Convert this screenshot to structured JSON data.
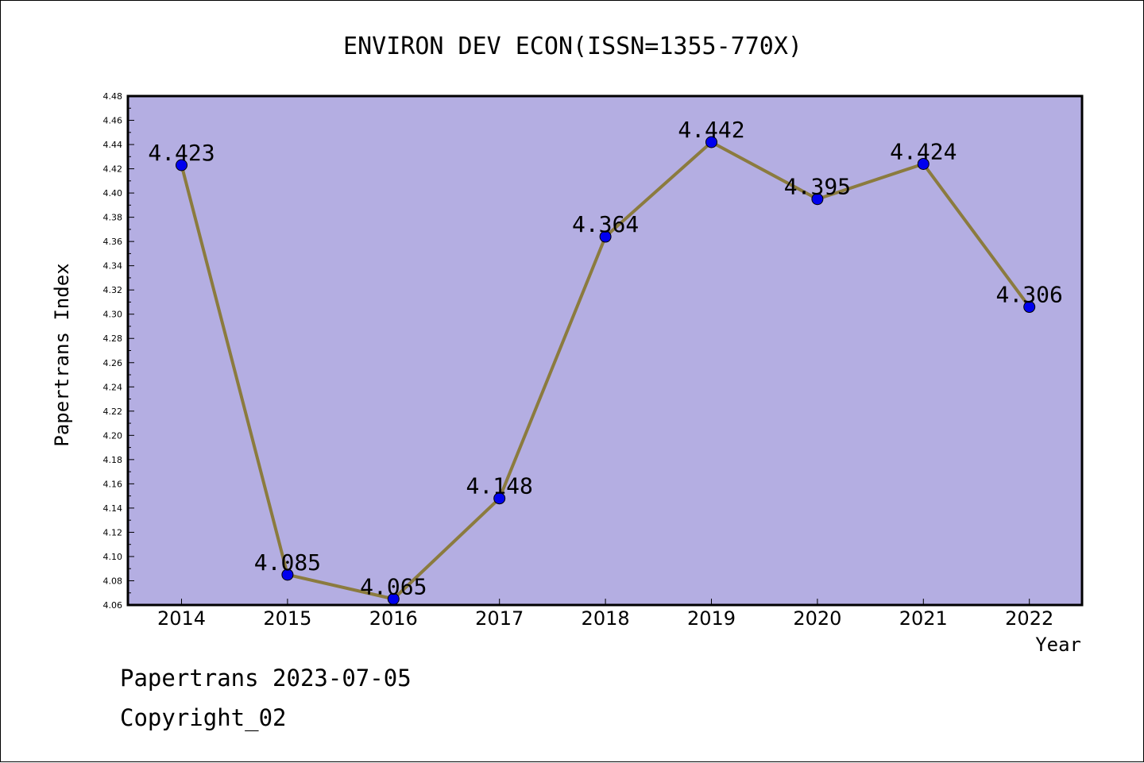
{
  "chart_data": {
    "type": "line",
    "title": "ENVIRON DEV ECON(ISSN=1355-770X)",
    "xlabel": "Year",
    "ylabel": "Papertrans Index",
    "categories": [
      "2014",
      "2015",
      "2016",
      "2017",
      "2018",
      "2019",
      "2020",
      "2021",
      "2022"
    ],
    "values": [
      4.423,
      4.085,
      4.065,
      4.148,
      4.364,
      4.442,
      4.395,
      4.424,
      4.306
    ],
    "data_labels": [
      "4.423",
      "4.085",
      "4.065",
      "4.148",
      "4.364",
      "4.442",
      "4.395",
      "4.424",
      "4.306"
    ],
    "ylim": [
      4.06,
      4.48
    ],
    "yticks": [
      "4.06",
      "4.08",
      "4.10",
      "4.12",
      "4.14",
      "4.16",
      "4.18",
      "4.20",
      "4.22",
      "4.24",
      "4.26",
      "4.28",
      "4.30",
      "4.32",
      "4.34",
      "4.36",
      "4.38",
      "4.40",
      "4.42",
      "4.44",
      "4.46",
      "4.48"
    ],
    "grid": false,
    "legend": "none",
    "colors": {
      "plot_background": "#b4aee2",
      "line": "#8b7b3e",
      "marker": "#0000ee"
    }
  },
  "footer": {
    "line1": "Papertrans 2023-07-05",
    "line2": "Copyright_02"
  }
}
